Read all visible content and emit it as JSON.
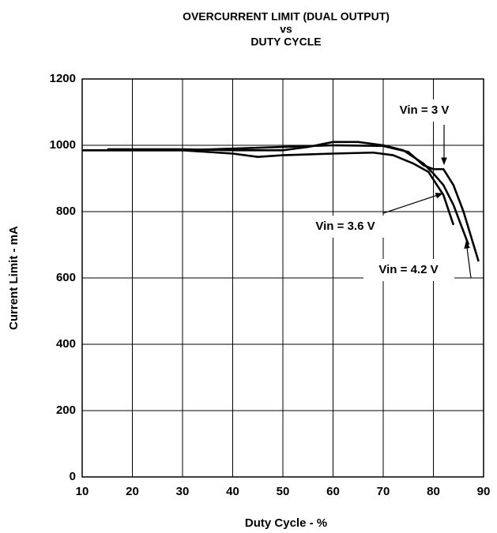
{
  "chart_data": {
    "type": "line",
    "title_lines": [
      "OVERCURRENT LIMIT (DUAL OUTPUT)",
      "vs",
      "DUTY CYCLE"
    ],
    "xlabel": "Duty Cycle - %",
    "ylabel": "Current Limit - mA",
    "xlim": [
      10,
      90
    ],
    "ylim": [
      0,
      1200
    ],
    "xticks": [
      10,
      20,
      30,
      40,
      50,
      60,
      70,
      80,
      90
    ],
    "yticks": [
      0,
      200,
      400,
      600,
      800,
      1000,
      1200
    ],
    "grid": true,
    "series": [
      {
        "name": "Vin = 3 V",
        "color": "#000000",
        "x": [
          10,
          20,
          30,
          40,
          50,
          60,
          70,
          75,
          78,
          80,
          82,
          84,
          86,
          88,
          89
        ],
        "values": [
          985,
          985,
          985,
          990,
          995,
          1000,
          998,
          980,
          940,
          928,
          928,
          880,
          800,
          700,
          650
        ]
      },
      {
        "name": "Vin = 3.6 V",
        "color": "#000000",
        "x": [
          10,
          20,
          30,
          40,
          45,
          50,
          60,
          68,
          72,
          76,
          79,
          82,
          84
        ],
        "values": [
          985,
          985,
          985,
          975,
          965,
          970,
          975,
          978,
          970,
          945,
          920,
          850,
          760
        ]
      },
      {
        "name": "Vin = 4.2 V",
        "color": "#000000",
        "x": [
          15,
          20,
          30,
          40,
          50,
          55,
          60,
          65,
          70,
          74,
          78,
          80,
          82,
          84,
          86,
          87
        ],
        "values": [
          988,
          988,
          988,
          985,
          985,
          995,
          1010,
          1010,
          1000,
          985,
          945,
          915,
          880,
          820,
          740,
          700
        ]
      }
    ]
  }
}
